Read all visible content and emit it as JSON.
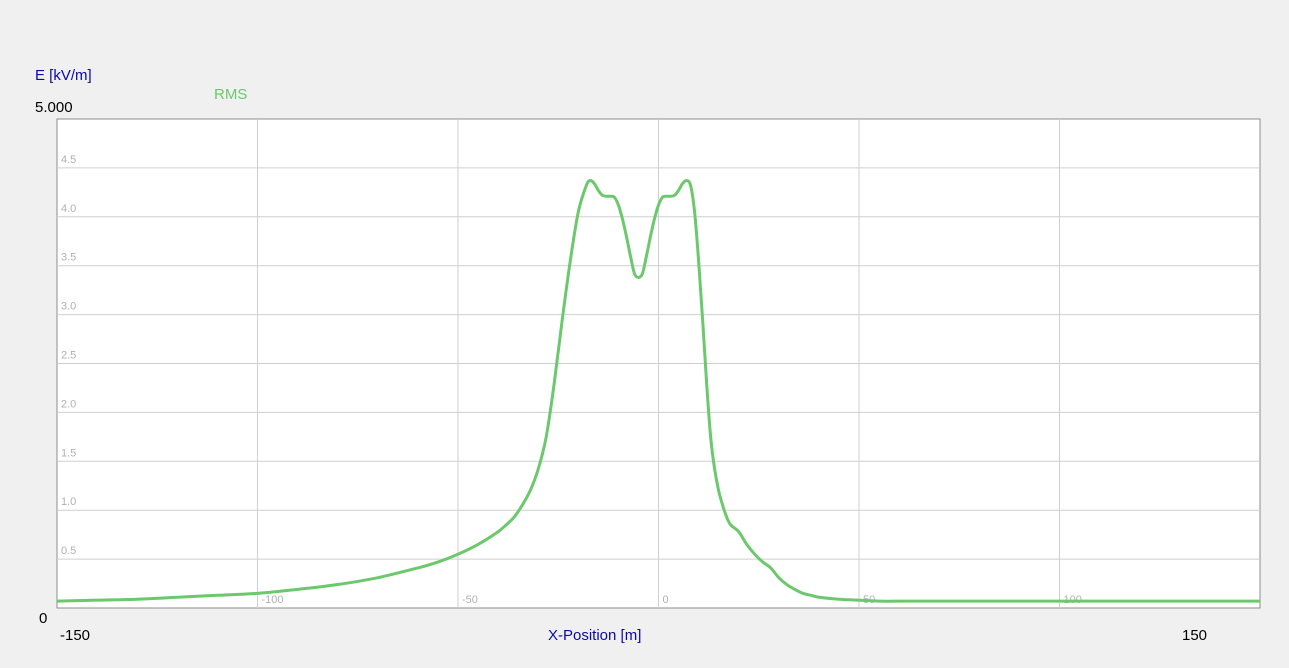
{
  "chart_data": {
    "type": "line",
    "ylabel": "E [kV/m]",
    "xlabel": "X-Position [m]",
    "xlim": [
      -150,
      150
    ],
    "ylim": [
      0,
      5
    ],
    "ymax_label": "5.000",
    "ymin_label": "0",
    "xmin_label": "-150",
    "xmax_label": "150",
    "grid": true,
    "legend_position": "top-left",
    "y_ticks": [
      {
        "value": 0.5,
        "label": "0.5"
      },
      {
        "value": 1.0,
        "label": "1.0"
      },
      {
        "value": 1.5,
        "label": "1.5"
      },
      {
        "value": 2.0,
        "label": "2.0"
      },
      {
        "value": 2.5,
        "label": "2.5"
      },
      {
        "value": 3.0,
        "label": "3.0"
      },
      {
        "value": 3.5,
        "label": "3.5"
      },
      {
        "value": 4.0,
        "label": "4.0"
      },
      {
        "value": 4.5,
        "label": "4.5"
      }
    ],
    "x_ticks": [
      {
        "value": -100,
        "label": "-100"
      },
      {
        "value": -50,
        "label": "-50"
      },
      {
        "value": 0,
        "label": "0"
      },
      {
        "value": 50,
        "label": "50"
      },
      {
        "value": 100,
        "label": "100"
      }
    ],
    "series": [
      {
        "name": "RMS",
        "color": "#6cc86c",
        "x": [
          -150,
          -140,
          -130,
          -120,
          -110,
          -100,
          -90,
          -80,
          -70,
          -60,
          -55,
          -50,
          -45,
          -40,
          -38,
          -36,
          -34,
          -32,
          -30,
          -28,
          -26,
          -24,
          -22,
          -20,
          -18,
          -17,
          -16,
          -15,
          -14,
          -13,
          -12,
          -11,
          -10,
          -9,
          -8,
          -7,
          -6,
          -5,
          -4,
          -3,
          -2,
          -1,
          0,
          1,
          2,
          3,
          4,
          5,
          6,
          7,
          8,
          9,
          10,
          11,
          12,
          13,
          14,
          15,
          16,
          17,
          18,
          20,
          22,
          24,
          26,
          28,
          30,
          32,
          34,
          36,
          38,
          40,
          45,
          50,
          55,
          60,
          70,
          80,
          90,
          100,
          110,
          120,
          130,
          140,
          150
        ],
        "y": [
          0.07,
          0.08,
          0.09,
          0.11,
          0.13,
          0.15,
          0.19,
          0.24,
          0.31,
          0.41,
          0.47,
          0.55,
          0.65,
          0.78,
          0.85,
          0.93,
          1.05,
          1.2,
          1.42,
          1.75,
          2.3,
          2.95,
          3.55,
          4.05,
          4.32,
          4.37,
          4.34,
          4.27,
          4.22,
          4.21,
          4.21,
          4.2,
          4.12,
          3.98,
          3.8,
          3.6,
          3.42,
          3.38,
          3.42,
          3.6,
          3.8,
          3.98,
          4.12,
          4.2,
          4.21,
          4.21,
          4.22,
          4.27,
          4.34,
          4.37,
          4.32,
          4.05,
          3.55,
          2.95,
          2.3,
          1.75,
          1.42,
          1.2,
          1.05,
          0.93,
          0.85,
          0.78,
          0.65,
          0.55,
          0.47,
          0.41,
          0.31,
          0.24,
          0.19,
          0.15,
          0.13,
          0.11,
          0.09,
          0.08,
          0.07,
          0.07,
          0.07,
          0.07,
          0.07,
          0.07,
          0.07,
          0.07,
          0.07,
          0.07,
          0.07
        ]
      }
    ]
  }
}
